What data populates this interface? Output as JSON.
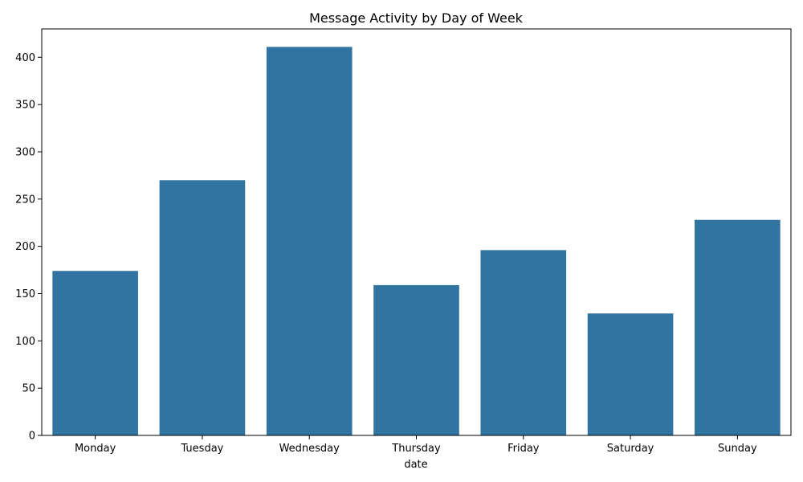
{
  "chart_data": {
    "type": "bar",
    "title": "Message Activity by Day of Week",
    "xlabel": "date",
    "ylabel": "",
    "categories": [
      "Monday",
      "Tuesday",
      "Wednesday",
      "Thursday",
      "Friday",
      "Saturday",
      "Sunday"
    ],
    "values": [
      174,
      270,
      411,
      159,
      196,
      129,
      228
    ],
    "ylim": [
      0,
      430
    ],
    "yticks": [
      0,
      50,
      100,
      150,
      200,
      250,
      300,
      350,
      400
    ],
    "grid": false,
    "legend": "none",
    "bar_color": "#3274a1"
  }
}
